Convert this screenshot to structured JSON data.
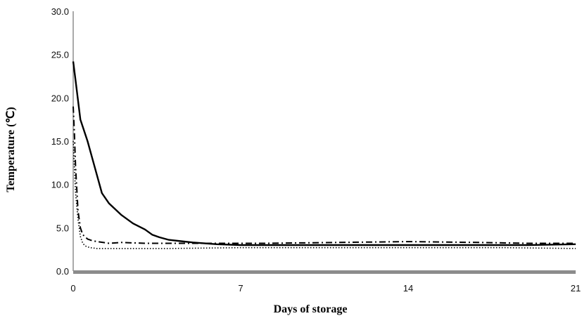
{
  "chart_data": {
    "type": "line",
    "title": "",
    "xlabel": "Days of storage",
    "ylabel": "Temperature (℃)",
    "xlim": [
      0,
      21
    ],
    "ylim": [
      0,
      30
    ],
    "grid": false,
    "legend": "none",
    "x_ticks": [
      {
        "value": 0,
        "label": "0"
      },
      {
        "value": 7,
        "label": "7"
      },
      {
        "value": 14,
        "label": "14"
      },
      {
        "value": 21,
        "label": "21"
      }
    ],
    "y_ticks": [
      {
        "value": 0,
        "label": "0.0"
      },
      {
        "value": 5,
        "label": "5.0"
      },
      {
        "value": 10,
        "label": "10.0"
      },
      {
        "value": 15,
        "label": "15.0"
      },
      {
        "value": 20,
        "label": "20.0"
      },
      {
        "value": 25,
        "label": "25.0"
      },
      {
        "value": 30,
        "label": "30.0"
      }
    ],
    "series": [
      {
        "style": "solid",
        "color": "#000000",
        "x": [
          0,
          0.1,
          0.3,
          0.6,
          0.8,
          1.0,
          1.2,
          1.5,
          2.0,
          2.5,
          3.0,
          3.3,
          3.6,
          4.0,
          5.0,
          6.0,
          7.0,
          9.0,
          12.0,
          15.0,
          17.0,
          19.0,
          21.0
        ],
        "y": [
          24.2,
          22.0,
          17.5,
          15.0,
          13.0,
          11.0,
          9.0,
          7.8,
          6.5,
          5.5,
          4.8,
          4.2,
          3.9,
          3.6,
          3.3,
          3.1,
          3.0,
          3.0,
          3.0,
          3.0,
          3.0,
          3.0,
          3.1
        ]
      },
      {
        "style": "dash-dot",
        "color": "#000000",
        "x": [
          0,
          0.05,
          0.1,
          0.2,
          0.3,
          0.4,
          0.6,
          0.8,
          1.0,
          1.5,
          2.0,
          3.0,
          5.0,
          8.0,
          11.0,
          14.0,
          17.0,
          19.0,
          21.0
        ],
        "y": [
          19.0,
          16.0,
          12.0,
          7.0,
          5.0,
          4.2,
          3.7,
          3.5,
          3.4,
          3.2,
          3.3,
          3.2,
          3.2,
          3.2,
          3.3,
          3.4,
          3.3,
          3.2,
          3.2
        ]
      },
      {
        "style": "dotted",
        "color": "#000000",
        "x": [
          0,
          0.05,
          0.1,
          0.2,
          0.3,
          0.4,
          0.5,
          0.7,
          1.0,
          2.0,
          4.0,
          7.0,
          10.0,
          14.0,
          18.0,
          21.0
        ],
        "y": [
          15.0,
          12.0,
          9.0,
          6.0,
          4.0,
          3.2,
          2.9,
          2.7,
          2.6,
          2.6,
          2.6,
          2.7,
          2.7,
          2.7,
          2.7,
          2.6
        ]
      }
    ]
  }
}
